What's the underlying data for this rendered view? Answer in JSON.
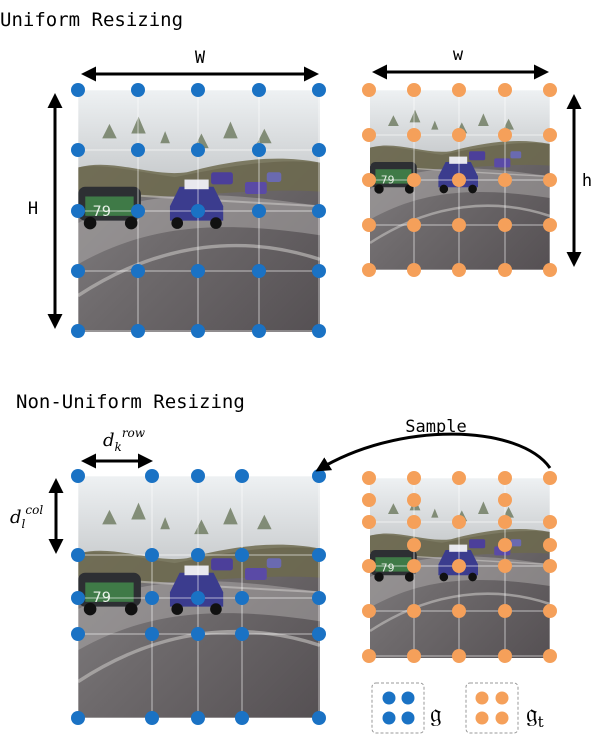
{
  "top_section": {
    "title": "Uniform Resizing",
    "width_label": "W",
    "height_label": "H",
    "small_width_label": "w",
    "small_height_label": "h",
    "source_grid_size": [
      5,
      5
    ],
    "target_grid_size": [
      5,
      5
    ]
  },
  "bottom_section": {
    "title": "Non-Uniform Resizing",
    "row_spacing_label": "d",
    "row_spacing_sub": "k",
    "row_spacing_sup": "row",
    "col_spacing_label": "d",
    "col_spacing_sub": "l",
    "col_spacing_sup": "col",
    "sample_label": "Sample",
    "source_grid_size": [
      6,
      6
    ],
    "target_grid_size": [
      6,
      5
    ]
  },
  "legend": {
    "source_grid_symbol": "𝔤",
    "target_grid_symbol": "𝔤",
    "target_grid_subscript": "t"
  },
  "colors": {
    "source_dot": "#1a72c4",
    "target_dot": "#f5a05a",
    "grid_line": "#ffffff",
    "arrow": "#000000"
  }
}
